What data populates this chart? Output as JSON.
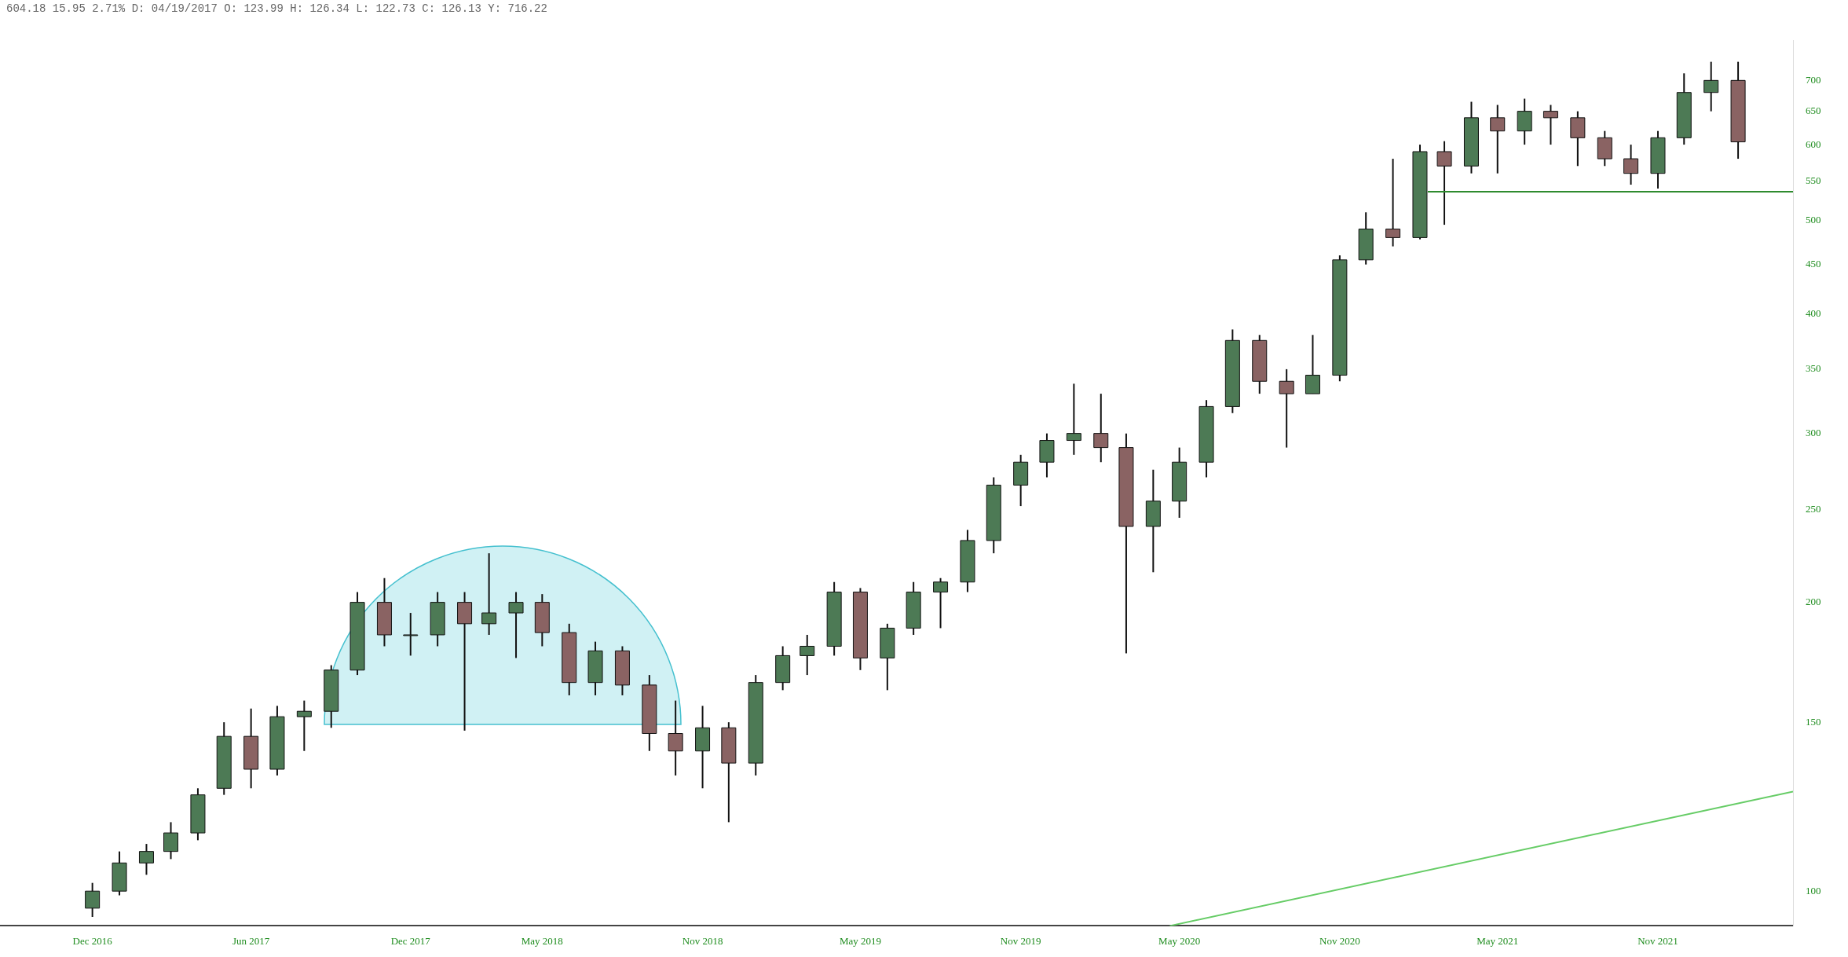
{
  "chart_data": {
    "type": "candlestick",
    "title": "604.18 15.95 2.71% D: 04/19/2017 O: 123.99 H: 126.34 L: 122.73 C: 126.13 Y: 716.22",
    "x": [
      "2016-12",
      "2017-01",
      "2017-02",
      "2017-03",
      "2017-04",
      "2017-05",
      "2017-06",
      "2017-07",
      "2017-08",
      "2017-09",
      "2017-10",
      "2017-11",
      "2017-12",
      "2018-01",
      "2018-02",
      "2018-03",
      "2018-04",
      "2018-05",
      "2018-06",
      "2018-07",
      "2018-08",
      "2018-09",
      "2018-10",
      "2018-11",
      "2018-12",
      "2019-01",
      "2019-02",
      "2019-03",
      "2019-04",
      "2019-05",
      "2019-06",
      "2019-07",
      "2019-08",
      "2019-09",
      "2019-10",
      "2019-11",
      "2019-12",
      "2020-01",
      "2020-02",
      "2020-03",
      "2020-04",
      "2020-05",
      "2020-06",
      "2020-07",
      "2020-08",
      "2020-09",
      "2020-10",
      "2020-11",
      "2020-12",
      "2021-01",
      "2021-02",
      "2021-03",
      "2021-04",
      "2021-05",
      "2021-06",
      "2021-07",
      "2021-08",
      "2021-09",
      "2021-10",
      "2021-11",
      "2021-12",
      "2022-01",
      "2022-02"
    ],
    "ohlc": [
      [
        96,
        102,
        94,
        100
      ],
      [
        100,
        110,
        99,
        107
      ],
      [
        107,
        112,
        104,
        110
      ],
      [
        110,
        118,
        108,
        115
      ],
      [
        115,
        128,
        113,
        126
      ],
      [
        128,
        150,
        126,
        145
      ],
      [
        145,
        155,
        128,
        134
      ],
      [
        134,
        156,
        132,
        152
      ],
      [
        152,
        158,
        140,
        154
      ],
      [
        154,
        172,
        148,
        170
      ],
      [
        170,
        205,
        168,
        200
      ],
      [
        200,
        212,
        180,
        185
      ],
      [
        185,
        195,
        176,
        185
      ],
      [
        185,
        205,
        180,
        200
      ],
      [
        200,
        205,
        147,
        190
      ],
      [
        190,
        225,
        185,
        195
      ],
      [
        195,
        205,
        175,
        200
      ],
      [
        200,
        204,
        180,
        186
      ],
      [
        186,
        190,
        160,
        165
      ],
      [
        165,
        182,
        160,
        178
      ],
      [
        178,
        180,
        160,
        164
      ],
      [
        164,
        168,
        140,
        146
      ],
      [
        146,
        158,
        132,
        140
      ],
      [
        140,
        156,
        128,
        148
      ],
      [
        148,
        150,
        118,
        136
      ],
      [
        136,
        168,
        132,
        165
      ],
      [
        165,
        180,
        162,
        176
      ],
      [
        176,
        185,
        168,
        180
      ],
      [
        180,
        210,
        176,
        205
      ],
      [
        205,
        207,
        170,
        175
      ],
      [
        175,
        190,
        162,
        188
      ],
      [
        188,
        210,
        185,
        205
      ],
      [
        205,
        212,
        188,
        210
      ],
      [
        210,
        238,
        205,
        232
      ],
      [
        232,
        270,
        225,
        265
      ],
      [
        265,
        285,
        252,
        280
      ],
      [
        280,
        300,
        270,
        295
      ],
      [
        295,
        338,
        285,
        300
      ],
      [
        300,
        330,
        280,
        290
      ],
      [
        290,
        300,
        177,
        240
      ],
      [
        240,
        275,
        215,
        255
      ],
      [
        255,
        290,
        245,
        280
      ],
      [
        280,
        325,
        270,
        320
      ],
      [
        320,
        385,
        315,
        375
      ],
      [
        375,
        380,
        330,
        340
      ],
      [
        340,
        350,
        290,
        330
      ],
      [
        330,
        380,
        330,
        345
      ],
      [
        345,
        460,
        340,
        455
      ],
      [
        455,
        510,
        450,
        490
      ],
      [
        490,
        580,
        470,
        480
      ],
      [
        480,
        600,
        478,
        590
      ],
      [
        590,
        605,
        495,
        570
      ],
      [
        570,
        665,
        560,
        640
      ],
      [
        640,
        660,
        560,
        620
      ],
      [
        620,
        670,
        600,
        650
      ],
      [
        650,
        660,
        600,
        640
      ],
      [
        640,
        650,
        570,
        610
      ],
      [
        610,
        620,
        570,
        580
      ],
      [
        580,
        600,
        545,
        560
      ],
      [
        560,
        620,
        540,
        610
      ],
      [
        610,
        712,
        600,
        680
      ],
      [
        680,
        732,
        650,
        700
      ],
      [
        700,
        732,
        580,
        604
      ]
    ],
    "series": [
      {
        "type": "line",
        "color": "#2e8b2e",
        "x": [
          "2021-02-10",
          "2022-04-05"
        ],
        "values": [
          536,
          536
        ]
      },
      {
        "type": "line",
        "color": "#66cc66",
        "x": [
          "2020-04-20",
          "2022-04-05"
        ],
        "values": [
          92,
          127
        ]
      }
    ],
    "log": true,
    "legend": false,
    "xlim": [
      "2016-08-17",
      "2022-04-05"
    ],
    "ylim": [
      92,
      770
    ],
    "xticks": [
      {
        "value": "2016-12-01",
        "label": "Dec 2016"
      },
      {
        "value": "2017-06-01",
        "label": "Jun 2017"
      },
      {
        "value": "2017-12-01",
        "label": "Dec 2017"
      },
      {
        "value": "2018-05-01",
        "label": "May 2018"
      },
      {
        "value": "2018-11-01",
        "label": "Nov 2018"
      },
      {
        "value": "2019-05-01",
        "label": "May 2019"
      },
      {
        "value": "2019-11-01",
        "label": "Nov 2019"
      },
      {
        "value": "2020-05-01",
        "label": "May 2020"
      },
      {
        "value": "2020-11-01",
        "label": "Nov 2020"
      },
      {
        "value": "2021-05-01",
        "label": "May 2021"
      },
      {
        "value": "2021-11-01",
        "label": "Nov 2021"
      }
    ],
    "yticks": [
      100,
      150,
      200,
      250,
      300,
      350,
      400,
      450,
      500,
      550,
      600,
      650,
      700
    ]
  }
}
